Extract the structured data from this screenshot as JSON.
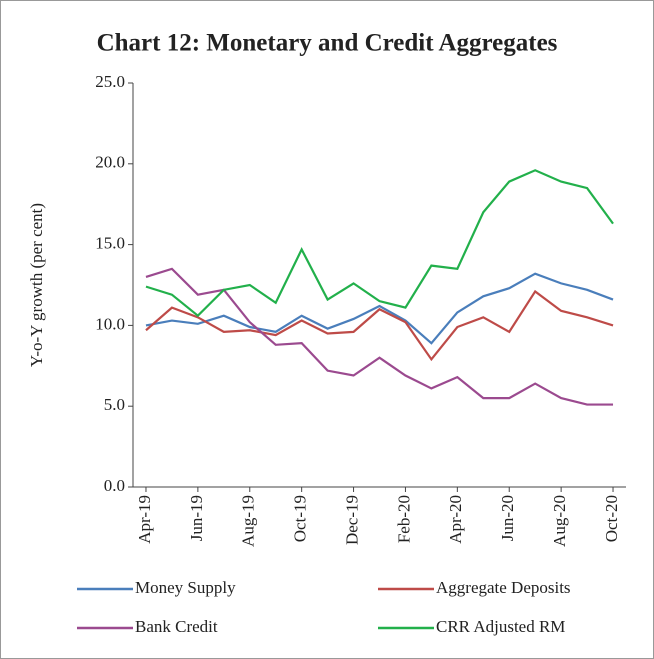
{
  "chart_data": {
    "type": "line",
    "title": "Chart 12: Monetary and Credit Aggregates",
    "y_label": "Y-o-Y growth (per cent)",
    "categories": [
      "Apr-19",
      null,
      "Jun-19",
      null,
      "Aug-19",
      null,
      "Oct-19",
      null,
      "Dec-19",
      null,
      "Feb-20",
      null,
      "Apr-20",
      null,
      "Jun-20",
      null,
      "Aug-20",
      null,
      "Oct-20"
    ],
    "series": [
      {
        "name": "Money Supply",
        "color": "#4a7ebb",
        "values": [
          10.0,
          10.3,
          10.1,
          10.6,
          9.9,
          9.6,
          10.6,
          9.8,
          10.4,
          11.2,
          10.3,
          8.9,
          10.8,
          11.8,
          12.3,
          13.2,
          12.6,
          12.2,
          11.6
        ]
      },
      {
        "name": "Aggregate Deposits",
        "color": "#be4b48",
        "values": [
          9.7,
          11.1,
          10.5,
          9.6,
          9.7,
          9.4,
          10.3,
          9.5,
          9.6,
          11.0,
          10.2,
          7.9,
          9.9,
          10.5,
          9.6,
          12.1,
          10.9,
          10.5,
          10.0
        ]
      },
      {
        "name": "Bank Credit",
        "color": "#9b4a8f",
        "values": [
          13.0,
          13.5,
          11.9,
          12.2,
          10.2,
          8.8,
          8.9,
          7.2,
          6.9,
          8.0,
          6.9,
          6.1,
          6.8,
          5.5,
          5.5,
          6.4,
          5.5,
          5.1,
          5.1
        ]
      },
      {
        "name": "CRR Adjusted RM",
        "color": "#22b04b",
        "values": [
          12.4,
          11.9,
          10.6,
          12.2,
          12.5,
          11.4,
          14.7,
          11.6,
          12.6,
          11.5,
          11.1,
          13.7,
          13.5,
          17.0,
          18.9,
          19.6,
          18.9,
          18.5,
          16.3
        ]
      }
    ],
    "ylim": [
      0,
      25
    ],
    "yticks": [
      {
        "value": 0,
        "label": "0.0"
      },
      {
        "value": 5,
        "label": "5.0"
      },
      {
        "value": 10,
        "label": "10.0"
      },
      {
        "value": 15,
        "label": "15.0"
      },
      {
        "value": 20,
        "label": "20.0"
      },
      {
        "value": 25,
        "label": "25.0"
      }
    ],
    "grid": false
  }
}
